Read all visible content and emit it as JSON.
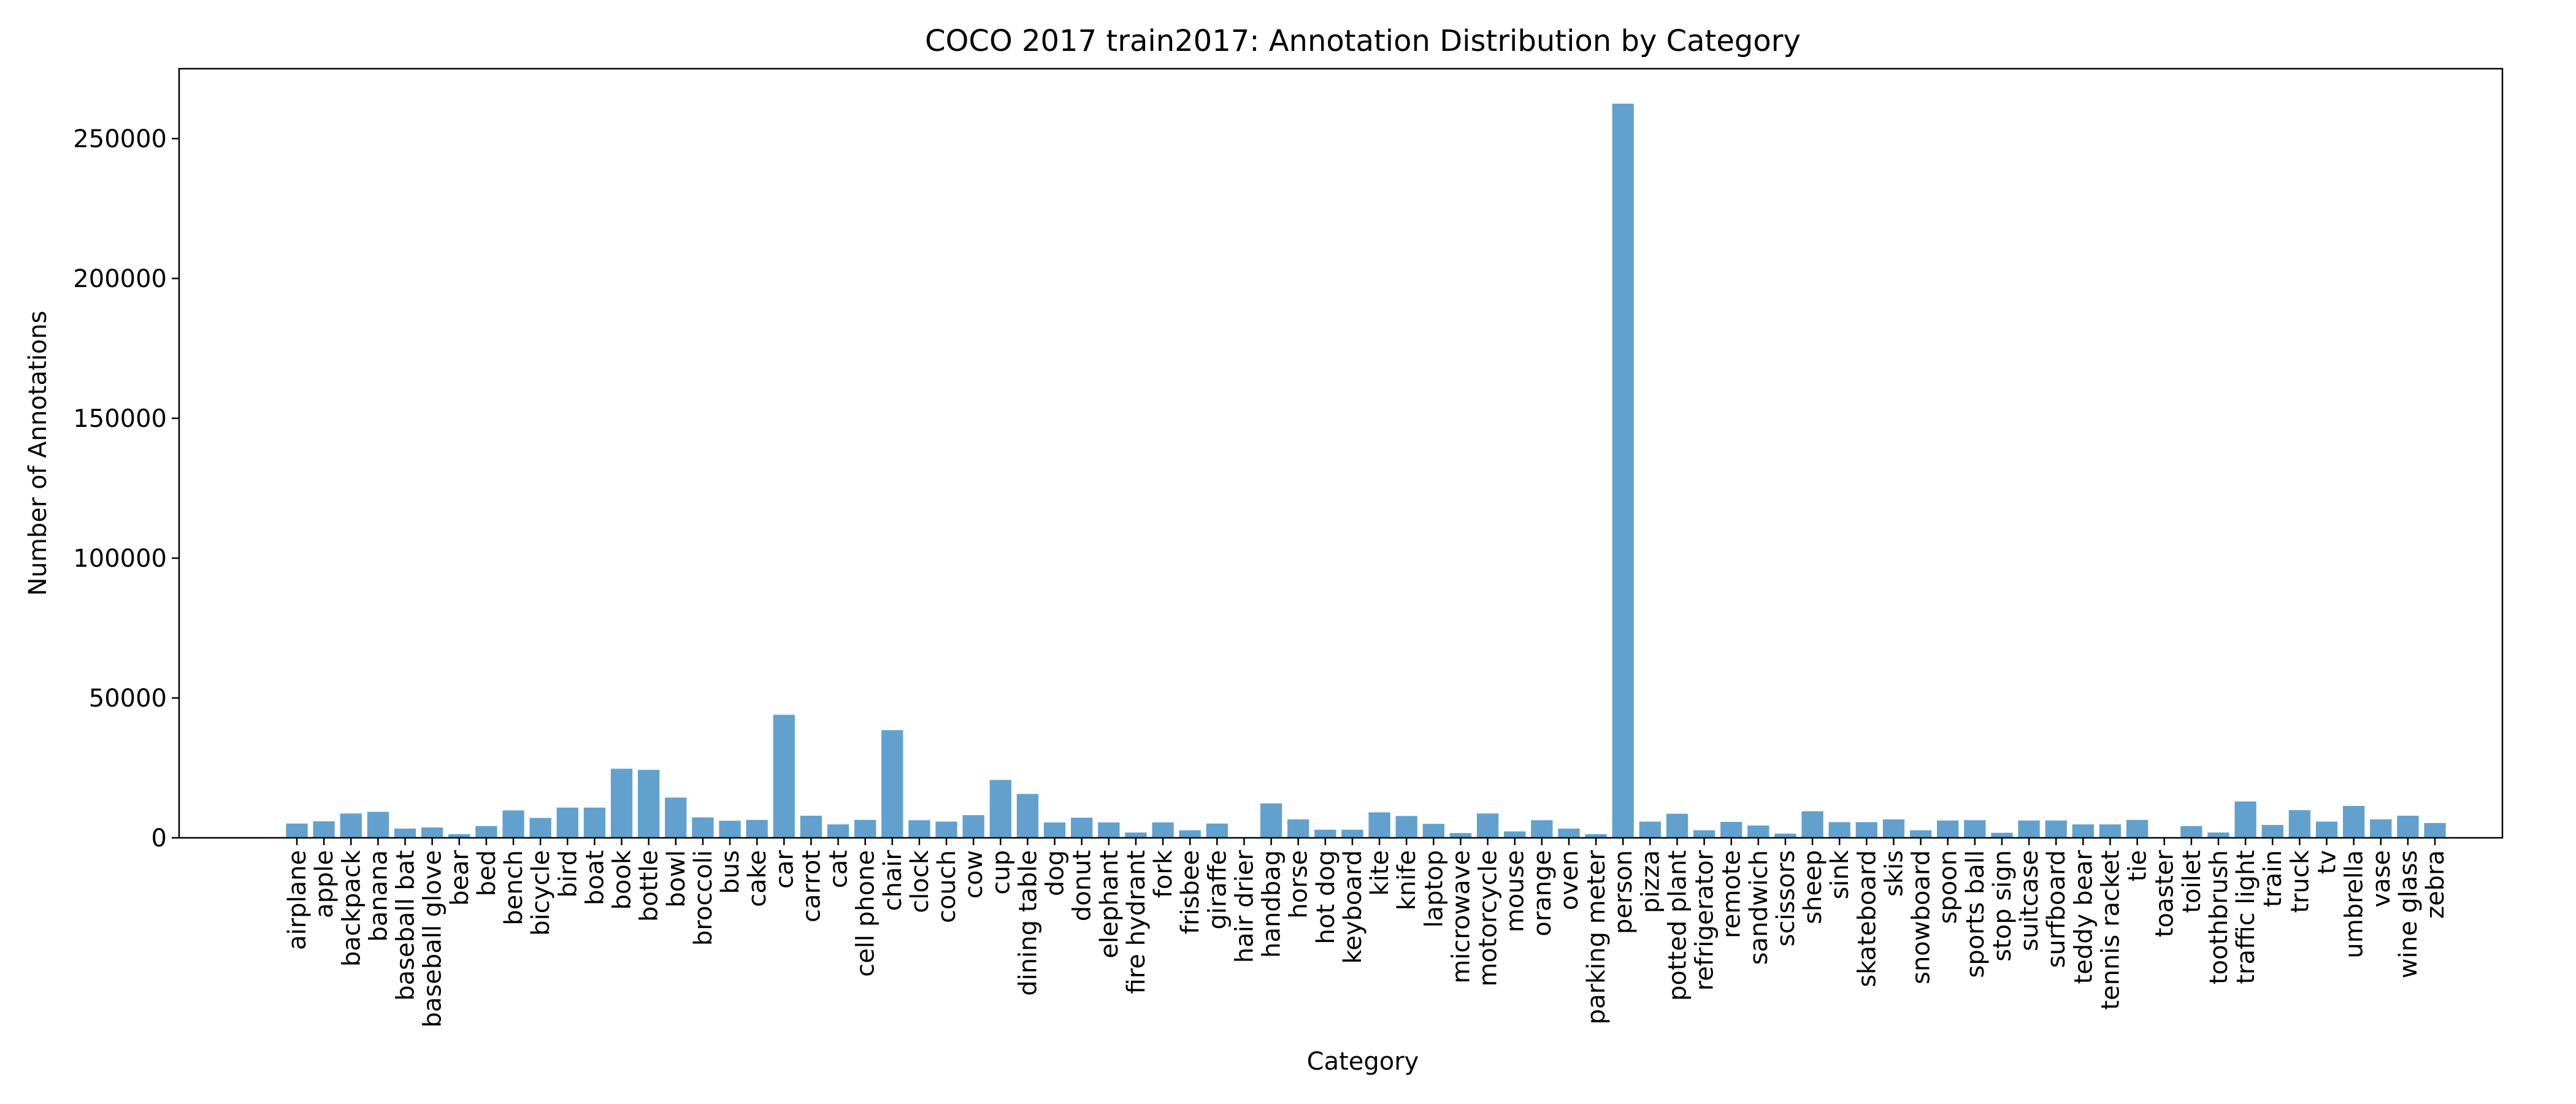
{
  "chart_data": {
    "type": "bar",
    "title": "COCO 2017 train2017: Annotation Distribution by Category",
    "xlabel": "Category",
    "ylabel": "Number of Annotations",
    "ylim": [
      0,
      275000
    ],
    "yticks": [
      0,
      50000,
      100000,
      150000,
      200000,
      250000
    ],
    "grid": false,
    "bar_color": "#62a1cd",
    "categories": [
      "airplane",
      "apple",
      "backpack",
      "banana",
      "baseball bat",
      "baseball glove",
      "bear",
      "bed",
      "bench",
      "bicycle",
      "bird",
      "boat",
      "book",
      "bottle",
      "bowl",
      "broccoli",
      "bus",
      "cake",
      "car",
      "carrot",
      "cat",
      "cell phone",
      "chair",
      "clock",
      "couch",
      "cow",
      "cup",
      "dining table",
      "dog",
      "donut",
      "elephant",
      "fire hydrant",
      "fork",
      "frisbee",
      "giraffe",
      "hair drier",
      "handbag",
      "horse",
      "hot dog",
      "keyboard",
      "kite",
      "knife",
      "laptop",
      "microwave",
      "motorcycle",
      "mouse",
      "orange",
      "oven",
      "parking meter",
      "person",
      "pizza",
      "potted plant",
      "refrigerator",
      "remote",
      "sandwich",
      "scissors",
      "sheep",
      "sink",
      "skateboard",
      "skis",
      "snowboard",
      "spoon",
      "sports ball",
      "stop sign",
      "suitcase",
      "surfboard",
      "teddy bear",
      "tennis racket",
      "tie",
      "toaster",
      "toilet",
      "toothbrush",
      "traffic light",
      "train",
      "truck",
      "tv",
      "umbrella",
      "vase",
      "wine glass",
      "zebra"
    ],
    "values": [
      5100,
      5900,
      8700,
      9300,
      3300,
      3700,
      1300,
      4200,
      9800,
      7100,
      10800,
      10800,
      24700,
      24300,
      14400,
      7300,
      6100,
      6400,
      44000,
      7900,
      4800,
      6400,
      38500,
      6300,
      5800,
      8100,
      20700,
      15700,
      5500,
      7200,
      5500,
      1900,
      5500,
      2700,
      5100,
      200,
      12300,
      6600,
      2900,
      2900,
      9100,
      7800,
      5000,
      1700,
      8700,
      2300,
      6300,
      3300,
      1300,
      262500,
      5800,
      8600,
      2700,
      5700,
      4400,
      1500,
      9500,
      5600,
      5600,
      6600,
      2700,
      6200,
      6300,
      1800,
      6200,
      6200,
      4800,
      4800,
      6400,
      200,
      4200,
      1900,
      13000,
      4600,
      9900,
      5800,
      11400,
      6600,
      7900,
      5300
    ]
  }
}
